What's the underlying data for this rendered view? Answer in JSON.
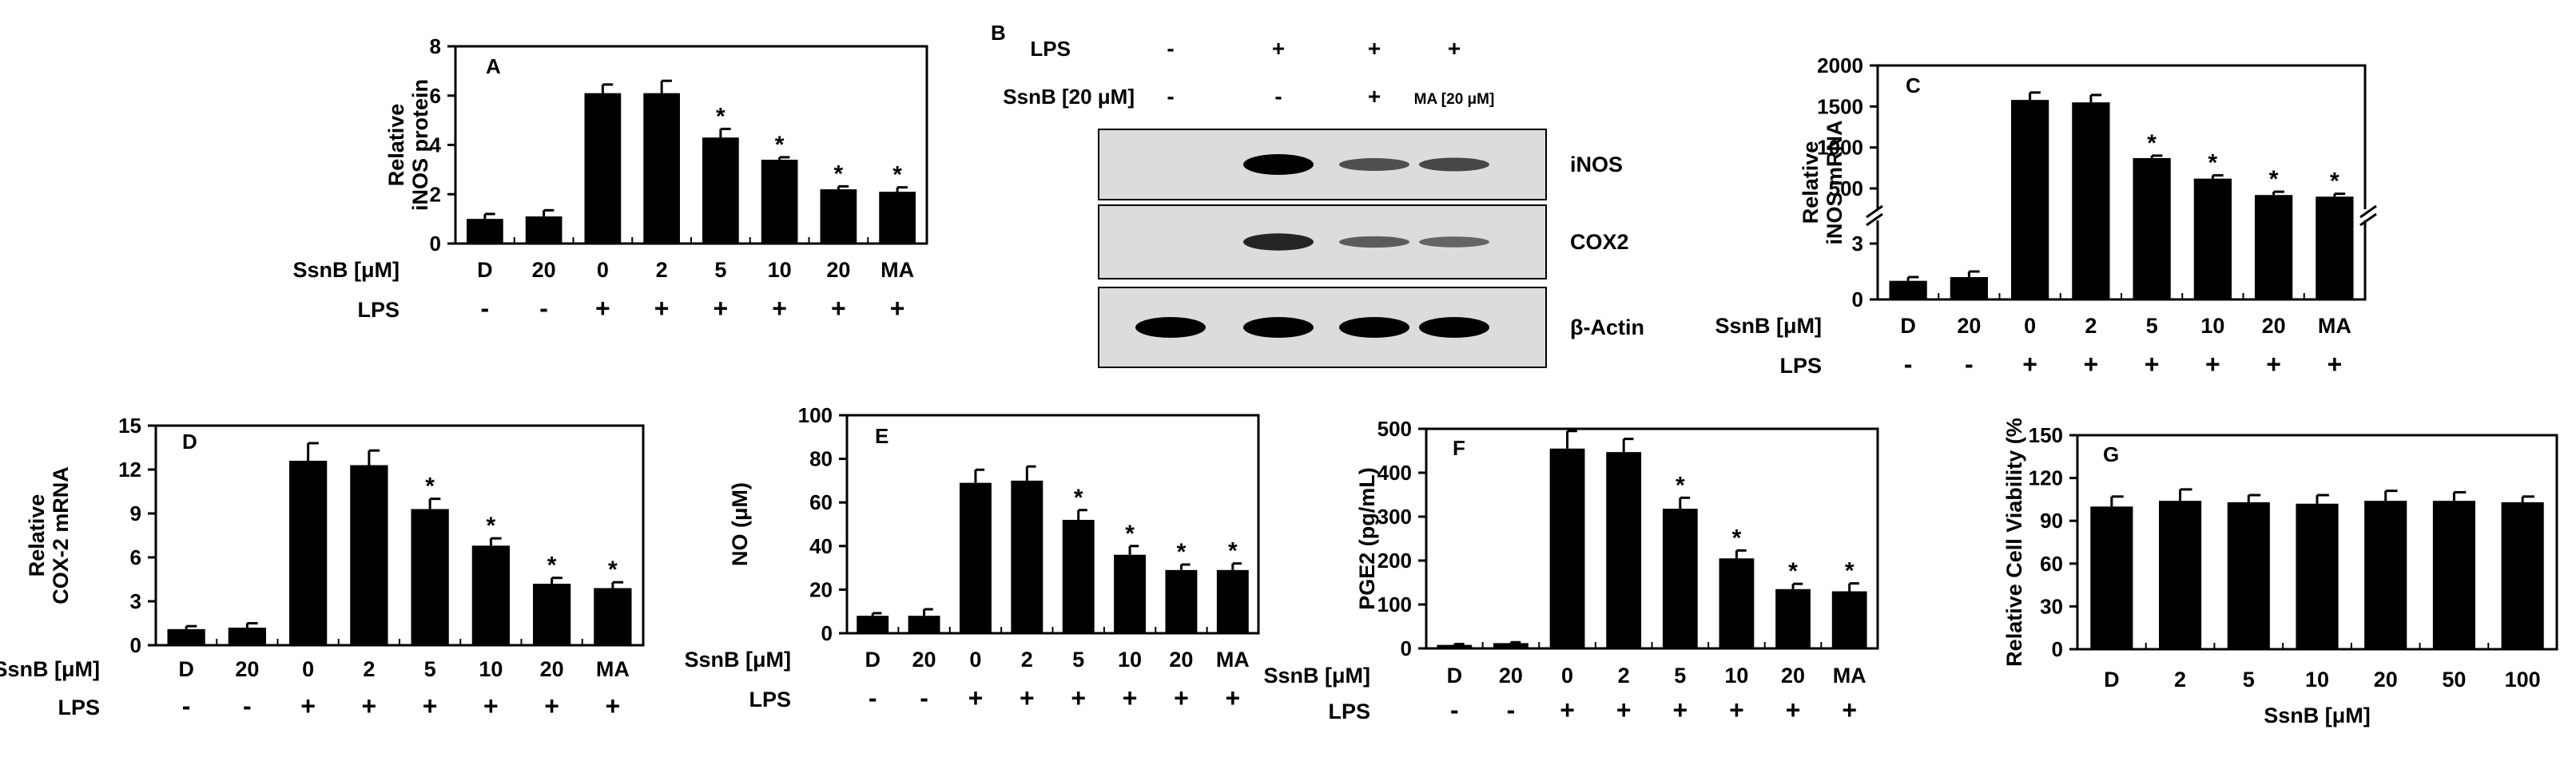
{
  "chart_data": [
    {
      "panel": "A",
      "type": "bar",
      "ylabel": [
        "Relative",
        "iNOS protein"
      ],
      "ylim": [
        0,
        8
      ],
      "yticks": [
        "0",
        "2",
        "4",
        "6",
        "8"
      ],
      "categories": [
        "D",
        "20",
        "0",
        "2",
        "5",
        "10",
        "20",
        "MA"
      ],
      "values": [
        1.0,
        1.1,
        6.1,
        6.1,
        4.3,
        3.4,
        2.2,
        2.1
      ],
      "errors": [
        0.2,
        0.25,
        0.35,
        0.5,
        0.35,
        0.1,
        0.12,
        0.18
      ],
      "significant": [
        false,
        false,
        false,
        false,
        true,
        true,
        true,
        true
      ],
      "row1_label": "SsnB [μM]",
      "row2_label": "LPS",
      "lps": [
        "-",
        "-",
        "+",
        "+",
        "+",
        "+",
        "+",
        "+"
      ]
    },
    {
      "panel": "C",
      "type": "bar",
      "ylabel": [
        "Relative",
        "iNOS mRNA"
      ],
      "axis_break": true,
      "yticks": [
        "0",
        "3",
        "500",
        "1000",
        "1500",
        "2000"
      ],
      "categories": [
        "D",
        "20",
        "0",
        "2",
        "5",
        "10",
        "20",
        "MA"
      ],
      "values": [
        1.0,
        1.2,
        1580,
        1550,
        870,
        620,
        420,
        400
      ],
      "errors": [
        0.2,
        0.3,
        90,
        90,
        30,
        40,
        40,
        35
      ],
      "significant": [
        false,
        false,
        false,
        false,
        true,
        true,
        true,
        true
      ],
      "row1_label": "SsnB [μM]",
      "row2_label": "LPS",
      "lps": [
        "-",
        "-",
        "+",
        "+",
        "+",
        "+",
        "+",
        "+"
      ]
    },
    {
      "panel": "D",
      "type": "bar",
      "ylabel": [
        "Relative",
        "COX-2 mRNA"
      ],
      "ylim": [
        0,
        15
      ],
      "yticks": [
        "0",
        "3",
        "6",
        "9",
        "12",
        "15"
      ],
      "categories": [
        "D",
        "20",
        "0",
        "2",
        "5",
        "10",
        "20",
        "MA"
      ],
      "values": [
        1.1,
        1.2,
        12.6,
        12.3,
        9.3,
        6.8,
        4.2,
        3.9
      ],
      "errors": [
        0.2,
        0.3,
        1.2,
        1.0,
        0.7,
        0.5,
        0.4,
        0.4
      ],
      "significant": [
        false,
        false,
        false,
        false,
        true,
        true,
        true,
        true
      ],
      "row1_label": "SsnB [μM]",
      "row2_label": "LPS",
      "lps": [
        "-",
        "-",
        "+",
        "+",
        "+",
        "+",
        "+",
        "+"
      ]
    },
    {
      "panel": "E",
      "type": "bar",
      "ylabel": [
        "NO (μM)"
      ],
      "ylim": [
        0,
        100
      ],
      "yticks": [
        "0",
        "20",
        "40",
        "60",
        "80",
        "100"
      ],
      "categories": [
        "D",
        "20",
        "0",
        "2",
        "5",
        "10",
        "20",
        "MA"
      ],
      "values": [
        8,
        8,
        69,
        70,
        52,
        36,
        29,
        29
      ],
      "errors": [
        1.2,
        3.0,
        6.0,
        6.5,
        4.5,
        4.0,
        2.5,
        3.0
      ],
      "significant": [
        false,
        false,
        false,
        false,
        true,
        true,
        true,
        true
      ],
      "row1_label": "SsnB [μM]",
      "row2_label": "LPS",
      "lps": [
        "-",
        "-",
        "+",
        "+",
        "+",
        "+",
        "+",
        "+"
      ]
    },
    {
      "panel": "F",
      "type": "bar",
      "ylabel": [
        "PGE2 (pg/mL)"
      ],
      "ylim": [
        0,
        500
      ],
      "yticks": [
        "0",
        "100",
        "200",
        "300",
        "400",
        "500"
      ],
      "categories": [
        "D",
        "20",
        "0",
        "2",
        "5",
        "10",
        "20",
        "MA"
      ],
      "values": [
        8,
        12,
        455,
        447,
        318,
        205,
        135,
        130
      ],
      "errors": [
        2,
        2,
        40,
        30,
        25,
        18,
        12,
        18
      ],
      "significant": [
        false,
        false,
        false,
        false,
        true,
        true,
        true,
        true
      ],
      "row1_label": "SsnB [μM]",
      "row2_label": "LPS",
      "lps": [
        "-",
        "-",
        "+",
        "+",
        "+",
        "+",
        "+",
        "+"
      ]
    },
    {
      "panel": "G",
      "type": "bar",
      "ylabel": [
        "Relative Cell Viability (%"
      ],
      "ylim": [
        0,
        150
      ],
      "yticks": [
        "0",
        "30",
        "60",
        "90",
        "120",
        "150"
      ],
      "categories": [
        "D",
        "2",
        "5",
        "10",
        "20",
        "50",
        "100"
      ],
      "values": [
        100,
        104,
        103,
        102,
        104,
        104,
        103
      ],
      "errors": [
        7,
        8,
        5,
        6,
        7,
        6,
        4
      ],
      "significant": [
        false,
        false,
        false,
        false,
        false,
        false,
        false
      ],
      "xlabel": "SsnB [μM]"
    }
  ],
  "blot": {
    "panel": "B",
    "header_rows": [
      {
        "label": "LPS",
        "values": [
          "-",
          "+",
          "+",
          "+"
        ]
      },
      {
        "label": "SsnB [20 μM]",
        "values": [
          "-",
          "-",
          "+",
          "MA [20 μM]"
        ]
      }
    ],
    "bands": [
      {
        "label": "iNOS",
        "intensity": [
          0,
          1.0,
          0.45,
          0.5
        ]
      },
      {
        "label": "COX2",
        "intensity": [
          0,
          0.75,
          0.35,
          0.3
        ]
      },
      {
        "label": "β-Actin",
        "intensity": [
          1.0,
          1.0,
          1.0,
          1.0
        ]
      }
    ]
  },
  "colors": {
    "bar": "#000000",
    "background": "#ffffff",
    "blot_bg": "#dcdcdc"
  }
}
